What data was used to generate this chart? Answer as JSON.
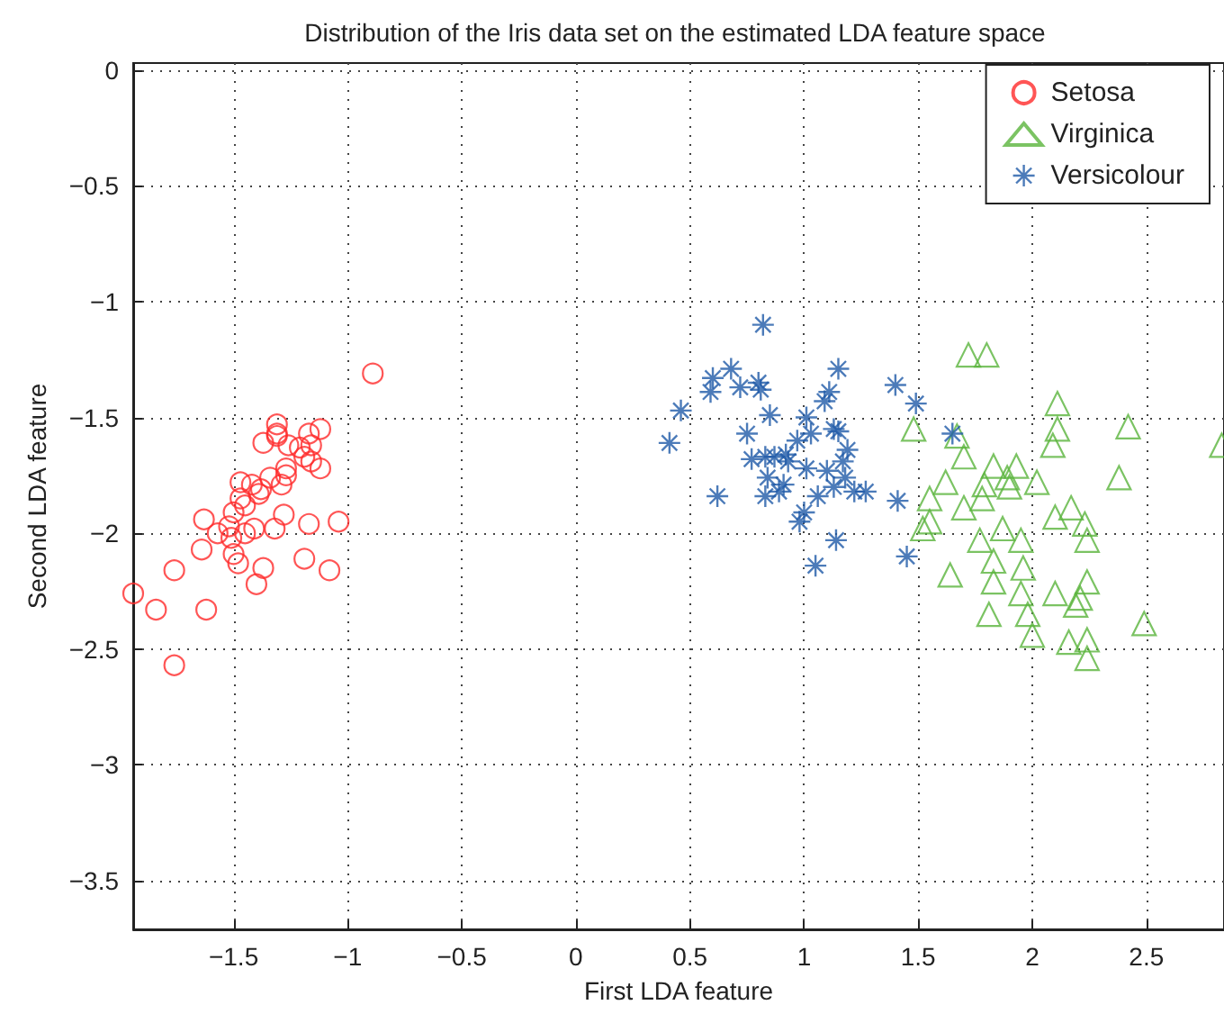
{
  "chart_data": {
    "type": "scatter",
    "title": "Distribution of the Iris data set on the estimated LDA feature space",
    "xlabel": "First LDA feature",
    "ylabel": "Second LDA feature",
    "xlim": [
      -1.94,
      2.84
    ],
    "xticks": [
      -1.5,
      -1,
      -0.5,
      0,
      0.5,
      1,
      1.5,
      2,
      2.5
    ],
    "ylim": [
      -3.71,
      0.03
    ],
    "yticks": [
      -3.5,
      -3,
      -2.5,
      -2,
      -1.5,
      -1,
      -0.5,
      0
    ],
    "grid": true,
    "legend": "top right",
    "series": [
      {
        "name": "Setosa",
        "color": "#ff2a2a",
        "marker": "circle",
        "x": [
          -0.89,
          -1.31,
          -1.31,
          -1.31,
          -1.37,
          -1.26,
          -1.21,
          -1.17,
          -1.12,
          -1.16,
          -1.19,
          -1.16,
          -1.12,
          -1.27,
          -1.27,
          -1.34,
          -1.47,
          -1.42,
          -1.38,
          -1.39,
          -1.29,
          -1.47,
          -1.45,
          -1.5,
          -1.63,
          -1.28,
          -1.17,
          -1.04,
          -1.32,
          -1.41,
          -1.45,
          -1.57,
          -1.52,
          -1.51,
          -1.64,
          -1.5,
          -1.48,
          -1.19,
          -1.37,
          -1.08,
          -1.76,
          -1.4,
          -1.94,
          -1.84,
          -1.62,
          -1.76
        ],
        "values": [
          -1.31,
          -1.53,
          -1.57,
          -1.58,
          -1.61,
          -1.62,
          -1.63,
          -1.57,
          -1.55,
          -1.62,
          -1.67,
          -1.69,
          -1.72,
          -1.72,
          -1.75,
          -1.76,
          -1.78,
          -1.79,
          -1.81,
          -1.83,
          -1.79,
          -1.85,
          -1.88,
          -1.91,
          -1.94,
          -1.92,
          -1.96,
          -1.95,
          -1.98,
          -1.98,
          -2.0,
          -2.0,
          -1.97,
          -2.02,
          -2.07,
          -2.09,
          -2.13,
          -2.11,
          -2.15,
          -2.16,
          -2.16,
          -2.22,
          -2.26,
          -2.33,
          -2.33,
          -2.57
        ]
      },
      {
        "name": "Virginica",
        "color": "#5ab43c",
        "marker": "triangle",
        "x": [
          1.72,
          1.8,
          2.11,
          1.48,
          1.67,
          2.11,
          2.09,
          2.42,
          2.83,
          1.7,
          1.83,
          1.93,
          1.62,
          1.79,
          1.89,
          1.9,
          2.02,
          2.38,
          1.55,
          1.78,
          1.7,
          1.55,
          1.52,
          1.87,
          2.17,
          2.1,
          2.23,
          1.77,
          1.95,
          2.24,
          1.83,
          1.64,
          1.96,
          1.83,
          2.24,
          1.95,
          2.1,
          2.21,
          2.19,
          1.81,
          1.98,
          2.49,
          2.0,
          2.16,
          2.24,
          2.24
        ],
        "values": [
          -1.23,
          -1.23,
          -1.44,
          -1.55,
          -1.58,
          -1.55,
          -1.62,
          -1.54,
          -1.62,
          -1.67,
          -1.71,
          -1.71,
          -1.78,
          -1.79,
          -1.76,
          -1.8,
          -1.78,
          -1.76,
          -1.85,
          -1.85,
          -1.89,
          -1.95,
          -1.98,
          -1.98,
          -1.89,
          -1.93,
          -1.96,
          -2.03,
          -2.03,
          -2.03,
          -2.12,
          -2.18,
          -2.15,
          -2.21,
          -2.21,
          -2.26,
          -2.26,
          -2.28,
          -2.31,
          -2.35,
          -2.35,
          -2.39,
          -2.44,
          -2.47,
          -2.46,
          -2.54
        ]
      },
      {
        "name": "Versicolour",
        "color": "#1f5aa8",
        "marker": "star",
        "x": [
          0.82,
          0.6,
          0.68,
          0.59,
          0.72,
          0.8,
          0.81,
          0.46,
          0.85,
          1.15,
          1.11,
          1.09,
          1.4,
          1.49,
          0.41,
          0.75,
          1.01,
          1.03,
          1.13,
          1.15,
          0.97,
          1.19,
          0.77,
          0.83,
          0.87,
          0.92,
          0.93,
          1.17,
          1.01,
          1.1,
          0.84,
          0.91,
          1.18,
          1.13,
          1.22,
          1.27,
          1.06,
          0.62,
          0.83,
          0.89,
          1.41,
          1.0,
          0.98,
          1.14,
          1.45,
          1.05,
          1.65
        ],
        "values": [
          -1.1,
          -1.33,
          -1.29,
          -1.39,
          -1.37,
          -1.35,
          -1.38,
          -1.47,
          -1.49,
          -1.29,
          -1.39,
          -1.43,
          -1.36,
          -1.44,
          -1.61,
          -1.57,
          -1.5,
          -1.57,
          -1.55,
          -1.56,
          -1.6,
          -1.64,
          -1.68,
          -1.67,
          -1.67,
          -1.66,
          -1.69,
          -1.69,
          -1.72,
          -1.73,
          -1.76,
          -1.79,
          -1.76,
          -1.8,
          -1.82,
          -1.82,
          -1.84,
          -1.84,
          -1.84,
          -1.82,
          -1.86,
          -1.91,
          -1.95,
          -2.03,
          -2.1,
          -2.14,
          -1.57
        ]
      }
    ]
  }
}
